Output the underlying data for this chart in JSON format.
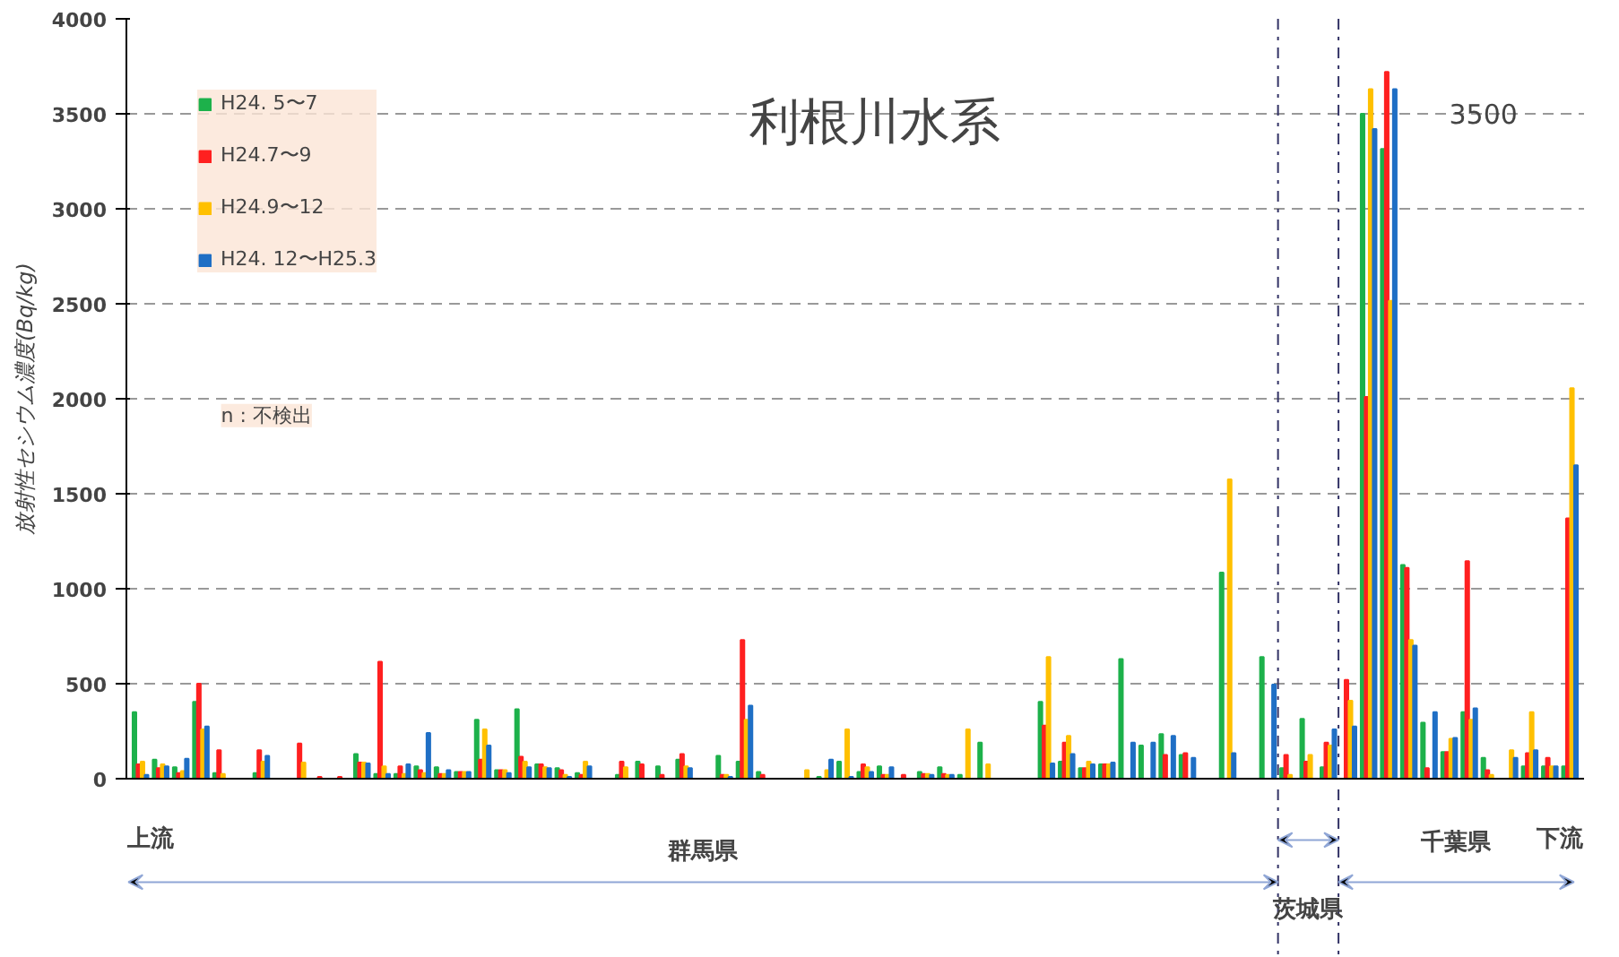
{
  "chart_data": {
    "type": "bar",
    "title": "利根川水系",
    "ylabel": "放射性セシウム濃度(Bq/kg)",
    "categories": [
      null,
      null,
      null,
      null,
      null,
      null,
      null,
      null,
      null,
      null,
      null,
      null,
      null,
      null,
      null,
      null,
      null,
      null,
      null,
      null,
      null,
      null,
      null,
      null,
      null,
      null,
      null,
      null,
      null,
      null,
      null,
      null,
      null,
      null,
      null,
      null,
      null,
      null,
      null,
      null,
      null,
      null,
      null,
      null,
      null,
      null,
      null,
      null,
      null,
      null,
      null,
      null,
      null,
      null,
      null,
      null,
      null,
      null,
      null,
      null,
      null,
      null,
      null,
      null,
      null,
      null,
      null,
      null,
      null,
      null,
      null,
      null
    ],
    "series": [
      {
        "name": "H24. 5〜7",
        "color": "#1db14b",
        "values": [
          350,
          100,
          60,
          405,
          30,
          null,
          30,
          null,
          null,
          null,
          null,
          130,
          25,
          25,
          65,
          60,
          35,
          310,
          45,
          365,
          75,
          55,
          30,
          null,
          20,
          90,
          65,
          100,
          null,
          120,
          90,
          35,
          null,
          null,
          10,
          90,
          35,
          65,
          null,
          35,
          60,
          20,
          190,
          null,
          null,
          405,
          90,
          55,
          75,
          630,
          175,
          235,
          125,
          null,
          1085,
          null,
          640,
          55,
          315,
          60,
          null,
          3500,
          3315,
          1125,
          295,
          140,
          350,
          110,
          null,
          65,
          65,
          65
        ]
      },
      {
        "name": "H24.7〜9",
        "color": "#ff2020",
        "values": [
          75,
          55,
          30,
          500,
          150,
          null,
          150,
          null,
          185,
          10,
          10,
          85,
          615,
          65,
          45,
          25,
          35,
          100,
          45,
          115,
          75,
          45,
          20,
          null,
          90,
          75,
          20,
          130,
          null,
          20,
          730,
          20,
          null,
          null,
          null,
          null,
          75,
          20,
          20,
          25,
          25,
          null,
          null,
          null,
          null,
          280,
          190,
          55,
          75,
          null,
          null,
          125,
          135,
          null,
          null,
          null,
          null,
          125,
          90,
          190,
          520,
          2010,
          3720,
          1110,
          55,
          140,
          1145,
          45,
          null,
          135,
          110,
          1370
        ]
      },
      {
        "name": "H24.9〜12",
        "color": "#ffc000",
        "values": [
          90,
          75,
          40,
          260,
          25,
          null,
          90,
          null,
          85,
          null,
          null,
          85,
          65,
          25,
          30,
          25,
          35,
          260,
          45,
          90,
          60,
          20,
          90,
          null,
          60,
          null,
          null,
          65,
          null,
          20,
          310,
          null,
          null,
          45,
          45,
          260,
          60,
          20,
          null,
          25,
          20,
          260,
          75,
          null,
          null,
          640,
          225,
          90,
          75,
          null,
          null,
          null,
          null,
          null,
          1575,
          null,
          null,
          20,
          125,
          175,
          410,
          3630,
          2515,
          730,
          null,
          210,
          310,
          20,
          150,
          350,
          65,
          2055
        ]
      },
      {
        "name": "H24. 12〜H25.3",
        "color": "#1f6fc5",
        "values": [
          20,
          65,
          105,
          275,
          null,
          null,
          120,
          null,
          null,
          null,
          null,
          80,
          25,
          75,
          240,
          45,
          35,
          175,
          30,
          60,
          55,
          10,
          65,
          null,
          null,
          null,
          null,
          55,
          null,
          10,
          385,
          null,
          null,
          null,
          100,
          10,
          35,
          60,
          null,
          20,
          20,
          null,
          null,
          null,
          null,
          80,
          130,
          75,
          85,
          190,
          190,
          225,
          110,
          null,
          135,
          null,
          495,
          null,
          null,
          260,
          275,
          3420,
          3630,
          700,
          350,
          215,
          370,
          null,
          110,
          150,
          65,
          1650
        ]
      }
    ],
    "ylim": [
      0,
      4000
    ],
    "yticks": [
      0,
      500,
      1000,
      1500,
      2000,
      2500,
      3000,
      3500,
      4000
    ],
    "grid": "y",
    "legend": "top left",
    "annotations": [
      "3500",
      "n : 不検出",
      "上流",
      "下流",
      "群馬県",
      "茨城県",
      "千葉県"
    ]
  }
}
